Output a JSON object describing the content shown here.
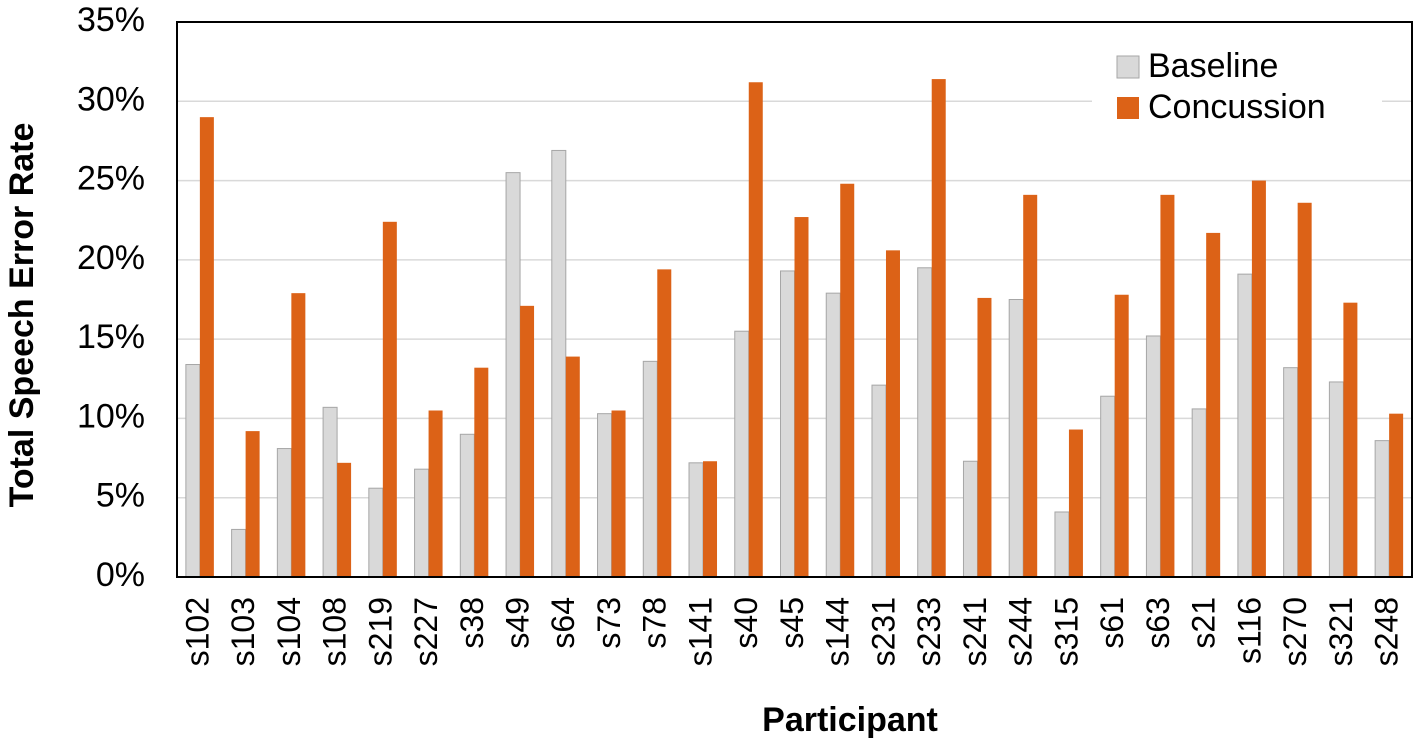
{
  "chart_data": {
    "type": "bar",
    "y_label": "Total Speech Error Rate",
    "x_label": "Participant",
    "categories": [
      "s102",
      "s103",
      "s104",
      "s108",
      "s219",
      "s227",
      "s38",
      "s49",
      "s64",
      "s73",
      "s78",
      "s141",
      "s40",
      "s45",
      "s144",
      "s231",
      "s233",
      "s241",
      "s244",
      "s315",
      "s61",
      "s63",
      "s21",
      "s116",
      "s270",
      "s321",
      "s248"
    ],
    "series": [
      {
        "name": "Baseline",
        "color": "#d9d9d9",
        "values": [
          13.4,
          3.0,
          8.1,
          10.7,
          5.6,
          6.8,
          9.0,
          25.5,
          26.9,
          10.3,
          13.6,
          7.2,
          15.5,
          19.3,
          17.9,
          12.1,
          19.5,
          7.3,
          17.5,
          4.1,
          11.4,
          15.2,
          10.6,
          19.1,
          13.2,
          12.3,
          8.6
        ]
      },
      {
        "name": "Concussion",
        "color": "#dc6217",
        "values": [
          29.0,
          9.2,
          17.9,
          7.2,
          22.4,
          10.5,
          13.2,
          17.1,
          13.9,
          10.5,
          19.4,
          7.3,
          31.2,
          22.7,
          24.8,
          20.6,
          31.4,
          17.6,
          24.1,
          9.3,
          17.8,
          24.1,
          21.7,
          25.0,
          23.6,
          17.3,
          10.3
        ]
      }
    ],
    "ylim": [
      0,
      35
    ],
    "yticks": [
      {
        "value": 0,
        "label": "0%"
      },
      {
        "value": 5,
        "label": "5%"
      },
      {
        "value": 10,
        "label": "10%"
      },
      {
        "value": 15,
        "label": "15%"
      },
      {
        "value": 20,
        "label": "20%"
      },
      {
        "value": 25,
        "label": "25%"
      },
      {
        "value": 30,
        "label": "30%"
      },
      {
        "value": 35,
        "label": "35%"
      }
    ],
    "grid": true,
    "legend": "top-right"
  }
}
